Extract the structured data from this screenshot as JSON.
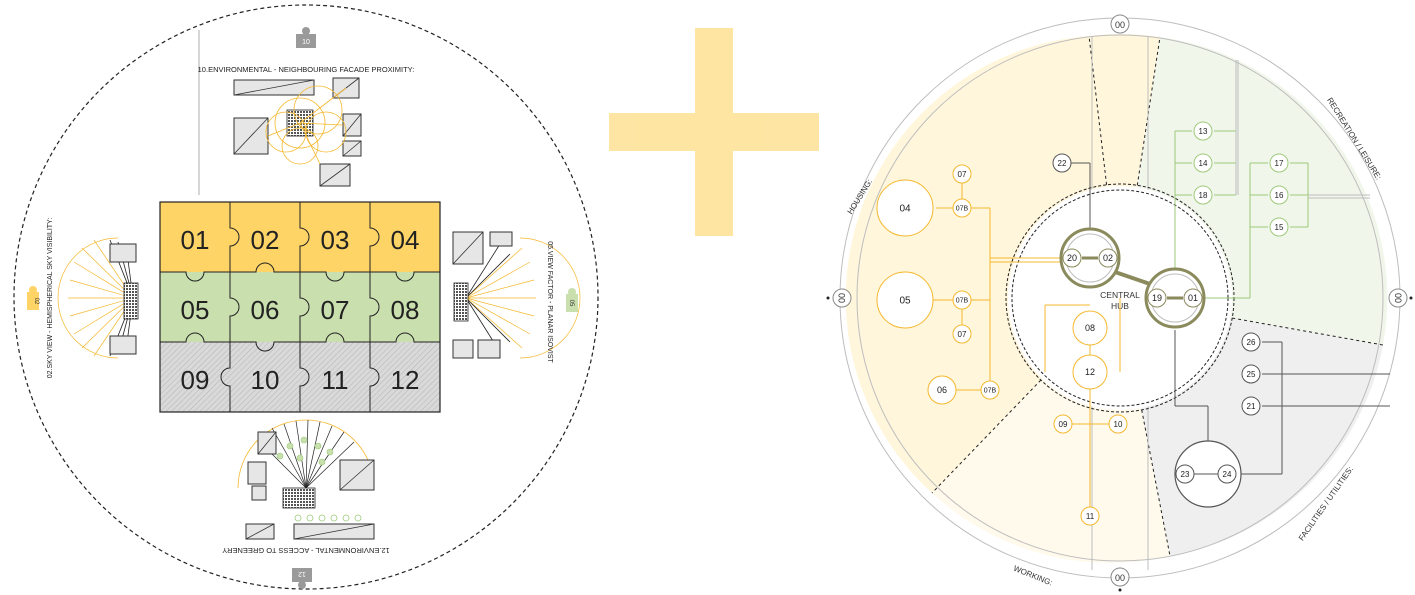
{
  "colors": {
    "yellow": "#FFD466",
    "yellow_line": "#F5B82E",
    "green": "#C9DFAE",
    "green_line": "#9CC97A",
    "grey": "#D7D7D7",
    "dark": "#333333"
  },
  "left_panel": {
    "top_label": "10.ENVIRONMENTAL - NEIGHBOURING FACADE PROXIMITY:",
    "left_label": "02.SKY VIEW - HEMISPHERICAL SKY VISIBILITY:",
    "right_label": "05.VIEW FACTOR - PLANAR ISOVIST",
    "bottom_label": "12.ENVIRONMENTAL - ACCESS TO GREENERY",
    "badge_top": "10",
    "badge_left": "02",
    "badge_right": "05",
    "badge_bottom": "12",
    "puzzle_rows": [
      [
        "01",
        "02",
        "03",
        "04"
      ],
      [
        "05",
        "06",
        "07",
        "08"
      ],
      [
        "09",
        "10",
        "11",
        "12"
      ]
    ]
  },
  "right_panel": {
    "center_label_line1": "CENTRAL",
    "center_label_line2": "HUB",
    "sector_housing": "HOUSING:",
    "sector_recreation": "RECREATION / LEISURE:",
    "sector_facilities": "FACILITIES / UTILITIES:",
    "sector_working": "WORKING:",
    "axis_top": "00",
    "axis_left": "00",
    "axis_right": "00",
    "axis_bottom": "00",
    "nodes": {
      "n04": "04",
      "n05": "05",
      "n06": "06",
      "n07a": "07",
      "n07b": "07",
      "n07ba": "07B",
      "n07bb": "07B",
      "n07bc": "07B",
      "n08": "08",
      "n12": "12",
      "n09": "09",
      "n10": "10",
      "n11": "11",
      "n20": "20",
      "n02": "02",
      "n19": "19",
      "n01": "01",
      "n22": "22",
      "n13": "13",
      "n14": "14",
      "n18": "18",
      "n17": "17",
      "n16": "16",
      "n15": "15",
      "n26": "26",
      "n25": "25",
      "n21": "21",
      "n23": "23",
      "n24": "24"
    }
  }
}
